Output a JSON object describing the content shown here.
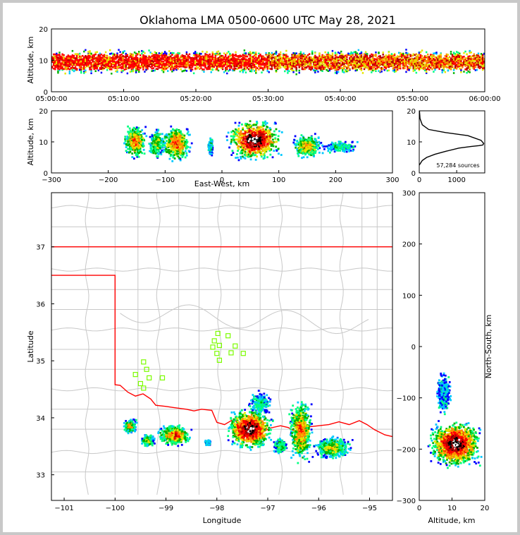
{
  "title": "Oklahoma LMA 0500-0600 UTC May 28, 2021",
  "colors": {
    "density": [
      "#0000ff",
      "#00c8ff",
      "#00ff80",
      "#00b400",
      "#e6e600",
      "#ff8c00",
      "#ff0000",
      "#b40000",
      "#000000",
      "#ffffff"
    ],
    "state_line": "#ff0000",
    "county_line": "#c8c8c8",
    "station_marker": "#7cfc00",
    "frame_background": "#c8c8c8"
  },
  "chart_data": [
    {
      "type": "heatmap",
      "name": "altitude-time",
      "ylabel": "Altitude, km",
      "xlabel": "",
      "ylim": [
        0,
        20
      ],
      "yticks": [
        "0",
        "10",
        "20"
      ],
      "xlim": [
        "05:00:00",
        "06:00:00"
      ],
      "xticks": [
        "05:00:00",
        "05:10:00",
        "05:20:00",
        "05:30:00",
        "05:40:00",
        "05:50:00",
        "06:00:00"
      ],
      "band_km": [
        3,
        18
      ],
      "core_km": [
        7,
        12
      ]
    },
    {
      "type": "heatmap",
      "name": "east-west-altitude",
      "xlabel": "East-West, km",
      "ylabel": "Altitude, km",
      "xlim": [
        -300,
        300
      ],
      "ylim": [
        0,
        20
      ],
      "xticks": [
        "−300",
        "−200",
        "−100",
        "0",
        "100",
        "200",
        "300"
      ],
      "yticks": [
        "0",
        "10",
        "20"
      ],
      "clusters": [
        {
          "x": [
            -175,
            -130
          ],
          "z": [
            4,
            16
          ],
          "peak": 6
        },
        {
          "x": [
            -130,
            -100
          ],
          "z": [
            4,
            15
          ],
          "peak": 4
        },
        {
          "x": [
            -110,
            -50
          ],
          "z": [
            3,
            16
          ],
          "peak": 6
        },
        {
          "x": [
            -25,
            -15
          ],
          "z": [
            5,
            12
          ],
          "peak": 2
        },
        {
          "x": [
            5,
            110
          ],
          "z": [
            3,
            18
          ],
          "peak": 9
        },
        {
          "x": [
            120,
            180
          ],
          "z": [
            4,
            13
          ],
          "peak": 5
        },
        {
          "x": [
            170,
            245
          ],
          "z": [
            6,
            11
          ],
          "peak": 2
        }
      ]
    },
    {
      "type": "line",
      "name": "altitude-histogram",
      "xlim": [
        0,
        1750
      ],
      "ylim": [
        0,
        20
      ],
      "xticks": [
        "0",
        "1000"
      ],
      "yticks": [
        "0",
        "10",
        "20"
      ],
      "annotation": "57,284 sources",
      "x": [
        0,
        80,
        200,
        420,
        720,
        1060,
        1380,
        1600,
        1700,
        1720,
        1650,
        1300,
        700,
        250,
        80,
        20,
        5
      ],
      "y": [
        2.5,
        4,
        5,
        6,
        7,
        8,
        8.5,
        8.8,
        9,
        9.5,
        10.5,
        12,
        13,
        14,
        15.5,
        17.5,
        20
      ]
    },
    {
      "type": "heatmap",
      "name": "plan-view-map",
      "xlabel": "Longitude",
      "ylabel": "Latitude",
      "xlim": [
        -101.25,
        -94.55
      ],
      "ylim": [
        32.55,
        37.95
      ],
      "xticks": [
        "−101",
        "−100",
        "−99",
        "−98",
        "−97",
        "−96",
        "−95"
      ],
      "yticks": [
        "33",
        "34",
        "35",
        "36",
        "37"
      ],
      "stations": [
        [
          -97.98,
          35.48
        ],
        [
          -97.78,
          35.44
        ],
        [
          -98.05,
          35.35
        ],
        [
          -97.95,
          35.27
        ],
        [
          -98.08,
          35.24
        ],
        [
          -97.64,
          35.26
        ],
        [
          -98.0,
          35.13
        ],
        [
          -97.72,
          35.14
        ],
        [
          -97.48,
          35.13
        ],
        [
          -97.95,
          35.01
        ],
        [
          -99.44,
          34.98
        ],
        [
          -99.38,
          34.85
        ],
        [
          -99.6,
          34.76
        ],
        [
          -99.33,
          34.7
        ],
        [
          -99.07,
          34.7
        ],
        [
          -99.5,
          34.6
        ],
        [
          -99.44,
          34.52
        ]
      ],
      "clusters": [
        {
          "lon": [
            -99.85,
            -99.55
          ],
          "lat": [
            33.72,
            33.98
          ],
          "peak": 5
        },
        {
          "lon": [
            -99.5,
            -99.2
          ],
          "lat": [
            33.48,
            33.72
          ],
          "peak": 4
        },
        {
          "lon": [
            -99.2,
            -98.45
          ],
          "lat": [
            33.48,
            33.9
          ],
          "peak": 6
        },
        {
          "lon": [
            -98.25,
            -98.1
          ],
          "lat": [
            33.5,
            33.62
          ],
          "peak": 2
        },
        {
          "lon": [
            -97.85,
            -96.85
          ],
          "lat": [
            33.4,
            34.2
          ],
          "peak": 9
        },
        {
          "lon": [
            -96.9,
            -96.6
          ],
          "lat": [
            33.35,
            33.65
          ],
          "peak": 3
        },
        {
          "lon": [
            -96.6,
            -96.1
          ],
          "lat": [
            33.15,
            34.4
          ],
          "peak": 6
        },
        {
          "lon": [
            -96.15,
            -95.3
          ],
          "lat": [
            33.25,
            33.7
          ],
          "peak": 4
        },
        {
          "lon": [
            -97.4,
            -96.9
          ],
          "lat": [
            34.0,
            34.5
          ],
          "peak": 2
        }
      ]
    },
    {
      "type": "heatmap",
      "name": "north-south-altitude",
      "xlabel": "Altitude, km",
      "ylabel": "North-South, km",
      "xlim": [
        0,
        20
      ],
      "ylim": [
        -300,
        300
      ],
      "xticks": [
        "0",
        "10",
        "20"
      ],
      "yticks": [
        "−300",
        "−200",
        "−100",
        "0",
        "100",
        "200",
        "300"
      ],
      "clusters": [
        {
          "z": [
            2,
            20
          ],
          "ns": [
            -240,
            -140
          ],
          "peak": 9
        },
        {
          "z": [
            5,
            10
          ],
          "ns": [
            -140,
            -40
          ],
          "peak": 1
        }
      ]
    }
  ]
}
